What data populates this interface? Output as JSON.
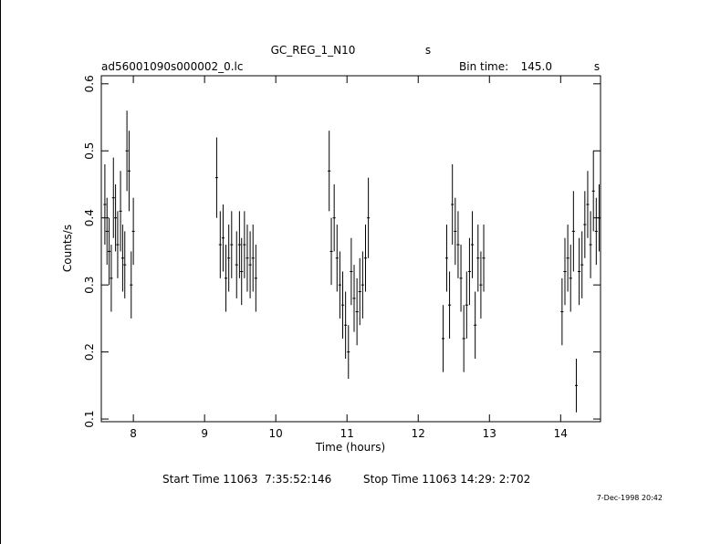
{
  "chart_data": {
    "type": "errorbar",
    "title": "GC_REG_1_N10",
    "title_unit": "s",
    "file_name": "ad56001090s000002_0.lc",
    "bin_time_label": "Bin time:",
    "bin_time_value": "145.0",
    "bin_time_unit": "s",
    "x_label": "Time (hours)",
    "y_label": "Counts/s",
    "start_time": "Start Time 11063  7:35:52:146",
    "stop_time": "Stop Time 11063 14:29: 2:702",
    "date": "7-Dec-1998 20:42",
    "xlim": [
      7.55,
      14.56
    ],
    "ylim": [
      0.096,
      0.612
    ],
    "xticks": [
      8,
      9,
      10,
      11,
      12,
      13,
      14
    ],
    "yticks": [
      0.1,
      0.2,
      0.3,
      0.4,
      0.5,
      0.6
    ],
    "series": [
      {
        "color": "#000000",
        "xerr": 0.02,
        "x": [
          7.6,
          7.63,
          7.66,
          7.69,
          7.72,
          7.75,
          7.78,
          7.82,
          7.85,
          7.88,
          7.91,
          7.94,
          7.97,
          8.0,
          9.17,
          9.22,
          9.26,
          9.3,
          9.34,
          9.38,
          9.45,
          9.49,
          9.52,
          9.56,
          9.6,
          9.64,
          9.68,
          9.72,
          10.75,
          10.78,
          10.82,
          10.86,
          10.9,
          10.94,
          10.98,
          11.02,
          11.06,
          11.1,
          11.14,
          11.18,
          11.22,
          11.26,
          11.3,
          12.35,
          12.4,
          12.44,
          12.48,
          12.52,
          12.56,
          12.6,
          12.64,
          12.68,
          12.72,
          12.76,
          12.8,
          12.84,
          12.88,
          12.92,
          14.02,
          14.06,
          14.1,
          14.14,
          14.18,
          14.22,
          14.26,
          14.3,
          14.34,
          14.38,
          14.42,
          14.46,
          14.5,
          14.54
        ],
        "values": [
          0.42,
          0.38,
          0.35,
          0.31,
          0.43,
          0.4,
          0.36,
          0.41,
          0.34,
          0.33,
          0.5,
          0.47,
          0.3,
          0.38,
          0.46,
          0.36,
          0.37,
          0.31,
          0.34,
          0.36,
          0.33,
          0.36,
          0.32,
          0.36,
          0.34,
          0.33,
          0.34,
          0.31,
          0.47,
          0.35,
          0.4,
          0.34,
          0.3,
          0.27,
          0.24,
          0.2,
          0.32,
          0.28,
          0.26,
          0.29,
          0.3,
          0.34,
          0.4,
          0.22,
          0.34,
          0.27,
          0.42,
          0.38,
          0.36,
          0.31,
          0.22,
          0.27,
          0.32,
          0.36,
          0.24,
          0.34,
          0.3,
          0.34,
          0.26,
          0.32,
          0.34,
          0.31,
          0.38,
          0.15,
          0.32,
          0.33,
          0.39,
          0.42,
          0.36,
          0.44,
          0.38,
          0.4
        ],
        "errors": [
          0.06,
          0.05,
          0.05,
          0.05,
          0.06,
          0.05,
          0.05,
          0.06,
          0.05,
          0.05,
          0.06,
          0.06,
          0.05,
          0.05,
          0.06,
          0.05,
          0.05,
          0.05,
          0.05,
          0.05,
          0.05,
          0.05,
          0.05,
          0.05,
          0.05,
          0.05,
          0.05,
          0.05,
          0.06,
          0.05,
          0.05,
          0.05,
          0.05,
          0.05,
          0.05,
          0.04,
          0.05,
          0.05,
          0.05,
          0.05,
          0.05,
          0.05,
          0.06,
          0.05,
          0.05,
          0.05,
          0.06,
          0.05,
          0.05,
          0.05,
          0.05,
          0.05,
          0.05,
          0.05,
          0.05,
          0.05,
          0.05,
          0.05,
          0.05,
          0.05,
          0.05,
          0.05,
          0.06,
          0.04,
          0.05,
          0.05,
          0.05,
          0.05,
          0.05,
          0.06,
          0.05,
          0.05
        ]
      }
    ]
  }
}
